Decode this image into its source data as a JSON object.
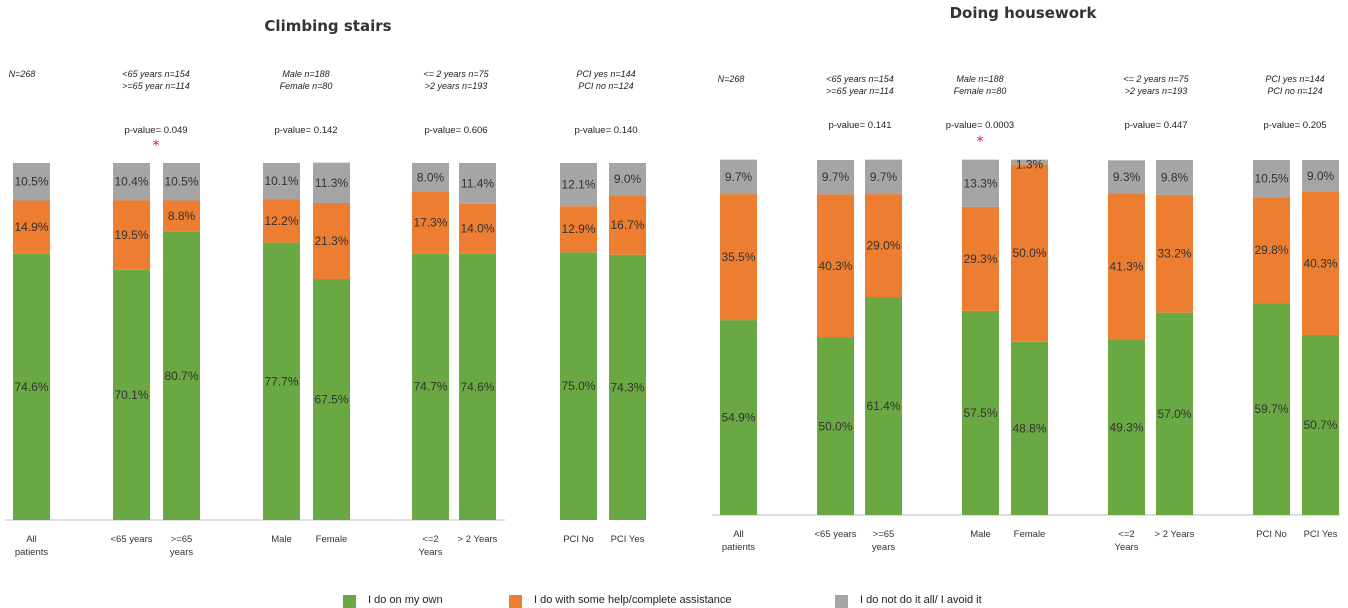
{
  "chart_data": [
    {
      "type": "bar",
      "stacked": true,
      "title": "Climbing stairs",
      "ylim": [
        0,
        100
      ],
      "categories": [
        "All patients",
        "<65 years",
        ">=65 years",
        "Male",
        "Female",
        "<=2 Years",
        "> 2 Years",
        "PCI No",
        "PCI Yes"
      ],
      "series": [
        {
          "name": "I do on my own",
          "values": [
            74.6,
            70.1,
            80.7,
            77.7,
            67.5,
            74.7,
            74.6,
            75.0,
            74.3
          ]
        },
        {
          "name": "I do with some help/complete assistance",
          "values": [
            14.9,
            19.5,
            8.8,
            12.2,
            21.3,
            17.3,
            14.0,
            12.9,
            16.7
          ]
        },
        {
          "name": "I do not do it all/ I avoid it",
          "values": [
            10.5,
            10.4,
            10.5,
            10.1,
            11.3,
            8.0,
            11.4,
            12.1,
            9.0
          ]
        }
      ],
      "groups": [
        {
          "note": [
            "N=268"
          ],
          "pvalue": ""
        },
        {
          "note": [
            "<65 years n=154",
            ">=65 year n=114"
          ],
          "pvalue": "p-value= 0.049",
          "significant": true
        },
        {
          "note": [
            "Male n=188",
            "Female n=80"
          ],
          "pvalue": "p-value= 0.142"
        },
        {
          "note": [
            "<= 2 years n=75",
            ">2 years n=193"
          ],
          "pvalue": "p-value= 0.606"
        },
        {
          "note": [
            "PCI yes n=144",
            "PCI no n=124"
          ],
          "pvalue": "p-value= 0.140"
        }
      ]
    },
    {
      "type": "bar",
      "stacked": true,
      "title": "Doing housework",
      "ylim": [
        0,
        100
      ],
      "categories": [
        "All patients",
        "<65 years",
        ">=65 years",
        "Male",
        "Female",
        "<=2 Years",
        "> 2 Years",
        "PCI No",
        "PCI Yes"
      ],
      "series": [
        {
          "name": "I do on my own",
          "values": [
            54.9,
            50.0,
            61.4,
            57.5,
            48.8,
            49.3,
            57.0,
            59.7,
            50.7
          ]
        },
        {
          "name": "I do with some help/complete assistance",
          "values": [
            35.5,
            40.3,
            29.0,
            29.3,
            50.0,
            41.3,
            33.2,
            29.8,
            40.3
          ]
        },
        {
          "name": "I do not do it all/ I avoid it",
          "values": [
            9.7,
            9.7,
            9.7,
            13.3,
            1.3,
            9.3,
            9.8,
            10.5,
            9.0
          ]
        }
      ],
      "groups": [
        {
          "note": [
            "N=268"
          ],
          "pvalue": ""
        },
        {
          "note": [
            "<65 years n=154",
            ">=65 year n=114"
          ],
          "pvalue": "p-value= 0.141"
        },
        {
          "note": [
            "Male n=188",
            "Female n=80"
          ],
          "pvalue": "p-value= 0.0003",
          "significant": true
        },
        {
          "note": [
            "<= 2 years n=75",
            ">2 years n=193"
          ],
          "pvalue": "p-value= 0.447"
        },
        {
          "note": [
            "PCI yes n=144",
            "PCI no n=124"
          ],
          "pvalue": "p-value= 0.205"
        }
      ]
    }
  ],
  "tick_labels": [
    [
      "All",
      "patients"
    ],
    [
      "<65 years"
    ],
    [
      ">=65",
      "years"
    ],
    [
      "Male"
    ],
    [
      "Female"
    ],
    [
      "<=2",
      "Years"
    ],
    [
      "> 2 Years"
    ],
    [
      "PCI No"
    ],
    [
      "PCI Yes"
    ]
  ],
  "legend": [
    {
      "label": "I do on my own",
      "color": "#6aa843"
    },
    {
      "label": "I do with some help/complete assistance",
      "color": "#ed7d31"
    },
    {
      "label": "I do not do it all/ I avoid it",
      "color": "#a5a5a5"
    }
  ],
  "significance_marker": "*"
}
